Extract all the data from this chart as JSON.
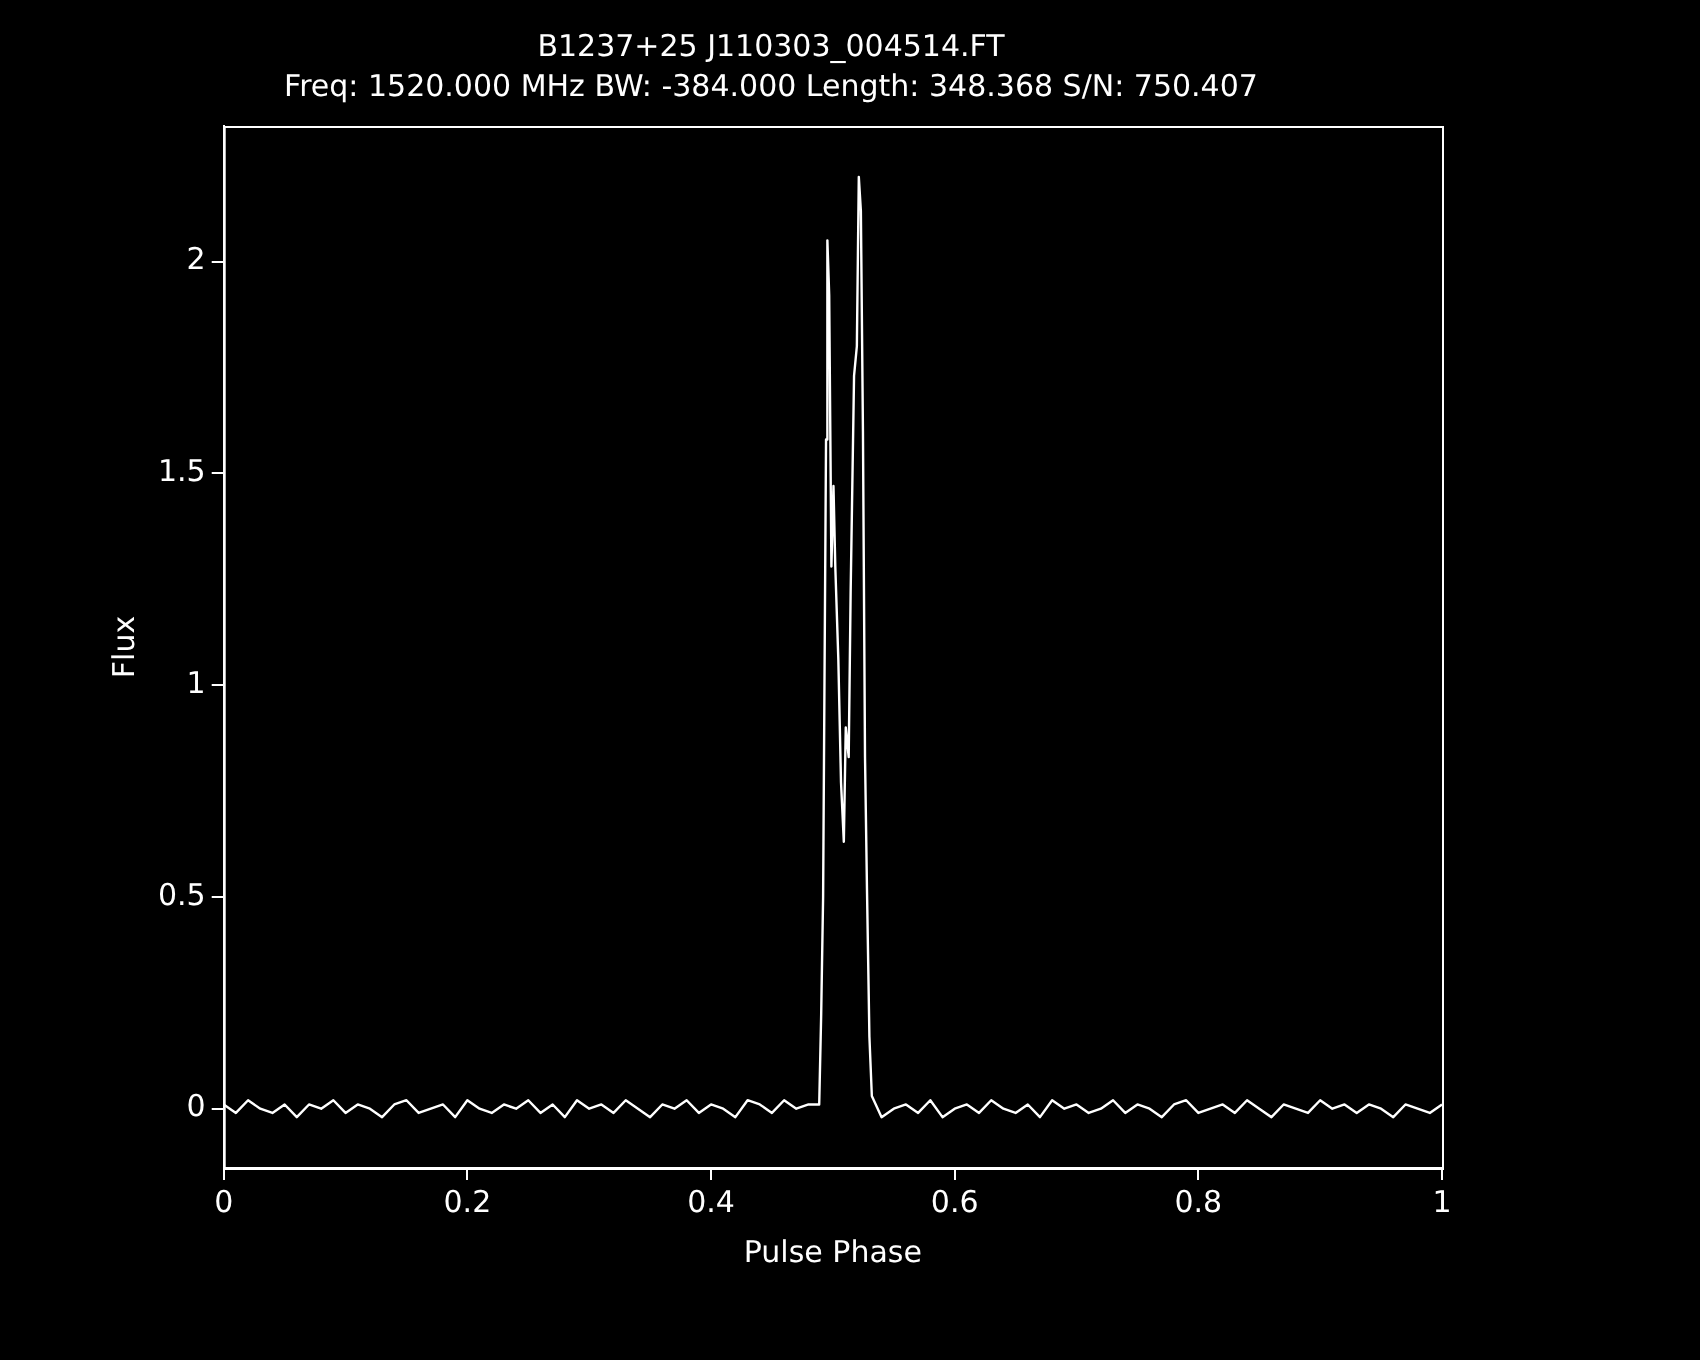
{
  "chart_data": {
    "type": "line",
    "title": "B1237+25 J110303_004514.FT",
    "subtitle": "Freq: 1520.000 MHz BW: -384.000 Length: 348.368 S/N: 750.407",
    "xlabel": "Pulse Phase",
    "ylabel": "Flux",
    "x": [
      0,
      0.01,
      0.02,
      0.03,
      0.04,
      0.05,
      0.06,
      0.07,
      0.08,
      0.09,
      0.1,
      0.11,
      0.12,
      0.13,
      0.14,
      0.15,
      0.16,
      0.17,
      0.18,
      0.19,
      0.2,
      0.21,
      0.22,
      0.23,
      0.24,
      0.25,
      0.26,
      0.27,
      0.28,
      0.29,
      0.3,
      0.31,
      0.32,
      0.33,
      0.34,
      0.35,
      0.36,
      0.37,
      0.38,
      0.39,
      0.4,
      0.41,
      0.42,
      0.43,
      0.44,
      0.45,
      0.46,
      0.47,
      0.48,
      0.4888,
      0.4904,
      0.492,
      0.4944,
      0.4955,
      0.497,
      0.4988,
      0.5005,
      0.502,
      0.5045,
      0.5067,
      0.509,
      0.5106,
      0.513,
      0.5146,
      0.5174,
      0.5197,
      0.5213,
      0.523,
      0.5247,
      0.5264,
      0.528,
      0.53,
      0.532,
      0.54,
      0.55,
      0.56,
      0.57,
      0.58,
      0.59,
      0.6,
      0.61,
      0.62,
      0.63,
      0.64,
      0.65,
      0.66,
      0.67,
      0.68,
      0.69,
      0.7,
      0.71,
      0.72,
      0.73,
      0.74,
      0.75,
      0.76,
      0.77,
      0.78,
      0.79,
      0.8,
      0.81,
      0.82,
      0.83,
      0.84,
      0.85,
      0.86,
      0.87,
      0.88,
      0.89,
      0.9,
      0.91,
      0.92,
      0.93,
      0.94,
      0.95,
      0.96,
      0.97,
      0.98,
      0.99,
      1
    ],
    "series": [
      {
        "color": "#ffffff",
        "values": [
          0.01,
          -0.01,
          0.02,
          0,
          -0.01,
          0.01,
          -0.02,
          0.01,
          0,
          0.02,
          -0.01,
          0.01,
          0,
          -0.02,
          0.01,
          0.02,
          -0.01,
          0,
          0.01,
          -0.02,
          0.02,
          0,
          -0.01,
          0.01,
          0,
          0.02,
          -0.01,
          0.01,
          -0.02,
          0.02,
          0,
          0.01,
          -0.01,
          0.02,
          0,
          -0.02,
          0.01,
          0,
          0.02,
          -0.01,
          0.01,
          0,
          -0.02,
          0.02,
          0.01,
          -0.01,
          0.02,
          0,
          0.01,
          0.01,
          0.22,
          0.5,
          1.58,
          2.05,
          1.92,
          1.28,
          1.47,
          1.28,
          1.06,
          0.77,
          0.63,
          0.9,
          0.83,
          1.22,
          1.73,
          1.8,
          2.2,
          2.12,
          1.6,
          0.83,
          0.52,
          0.17,
          0.03,
          -0.02,
          0,
          0.01,
          -0.01,
          0.02,
          -0.02,
          0,
          0.01,
          -0.01,
          0.02,
          0,
          -0.01,
          0.01,
          -0.02,
          0.02,
          0,
          0.01,
          -0.01,
          0,
          0.02,
          -0.01,
          0.01,
          0,
          -0.02,
          0.01,
          0.02,
          -0.01,
          0,
          0.01,
          -0.01,
          0.02,
          0,
          -0.02,
          0.01,
          0,
          -0.01,
          0.02,
          0,
          0.01,
          -0.01,
          0.01,
          0,
          -0.02,
          0.01,
          0,
          -0.01,
          0.01
        ]
      }
    ],
    "xlim": [
      0,
      1
    ],
    "xticks": [
      0,
      0.2,
      0.4,
      0.6,
      0.8,
      1
    ],
    "ylim": [
      -0.14,
      2.32
    ],
    "yticks": [
      0,
      0.5,
      1,
      1.5,
      2
    ],
    "grid": false,
    "legend": false,
    "marker": "none",
    "line_style": "solid"
  }
}
